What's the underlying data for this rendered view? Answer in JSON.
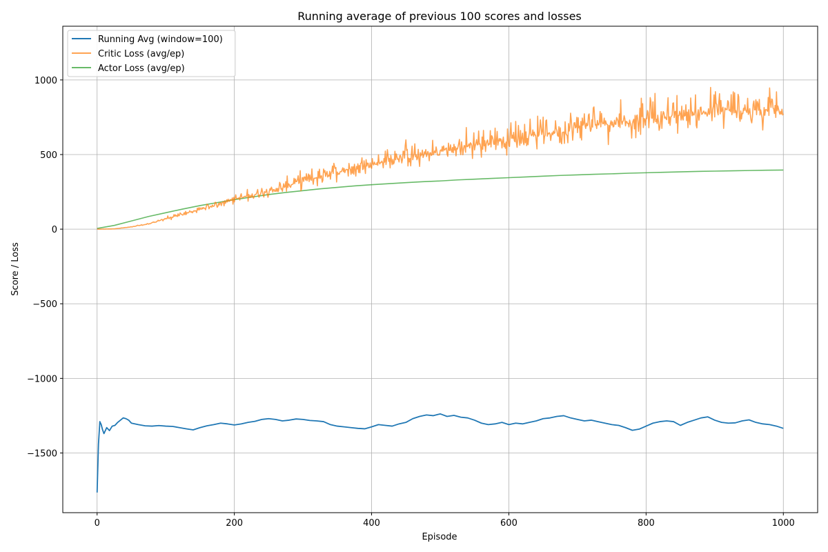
{
  "chart_data": {
    "type": "line",
    "title": "Running average of previous 100 scores and losses",
    "xlabel": "Episode",
    "ylabel": "Score / Loss",
    "xlim": [
      -50,
      1050
    ],
    "ylim": [
      -1900,
      1360
    ],
    "xticks": [
      0,
      200,
      400,
      600,
      800,
      1000
    ],
    "yticks": [
      -1500,
      -1000,
      -500,
      0,
      500,
      1000
    ],
    "ytick_labels": [
      "−1500",
      "−1000",
      "−500",
      "0",
      "500",
      "1000"
    ],
    "grid": true,
    "legend_position": "top-left",
    "series": [
      {
        "name": "Running Avg (window=100)",
        "color": "#1f77b4",
        "points": [
          [
            0,
            -1765
          ],
          [
            2,
            -1440
          ],
          [
            4,
            -1290
          ],
          [
            6,
            -1310
          ],
          [
            8,
            -1345
          ],
          [
            10,
            -1370
          ],
          [
            14,
            -1330
          ],
          [
            18,
            -1350
          ],
          [
            22,
            -1320
          ],
          [
            26,
            -1315
          ],
          [
            30,
            -1295
          ],
          [
            34,
            -1280
          ],
          [
            38,
            -1265
          ],
          [
            42,
            -1270
          ],
          [
            46,
            -1280
          ],
          [
            50,
            -1300
          ],
          [
            60,
            -1310
          ],
          [
            70,
            -1318
          ],
          [
            80,
            -1320
          ],
          [
            90,
            -1316
          ],
          [
            100,
            -1320
          ],
          [
            110,
            -1322
          ],
          [
            120,
            -1330
          ],
          [
            130,
            -1338
          ],
          [
            140,
            -1345
          ],
          [
            150,
            -1330
          ],
          [
            160,
            -1318
          ],
          [
            170,
            -1310
          ],
          [
            180,
            -1300
          ],
          [
            190,
            -1305
          ],
          [
            200,
            -1312
          ],
          [
            210,
            -1305
          ],
          [
            220,
            -1295
          ],
          [
            230,
            -1288
          ],
          [
            240,
            -1275
          ],
          [
            250,
            -1270
          ],
          [
            260,
            -1275
          ],
          [
            270,
            -1285
          ],
          [
            280,
            -1280
          ],
          [
            290,
            -1272
          ],
          [
            300,
            -1275
          ],
          [
            310,
            -1282
          ],
          [
            320,
            -1285
          ],
          [
            330,
            -1290
          ],
          [
            340,
            -1310
          ],
          [
            350,
            -1320
          ],
          [
            360,
            -1325
          ],
          [
            370,
            -1330
          ],
          [
            380,
            -1335
          ],
          [
            390,
            -1338
          ],
          [
            400,
            -1325
          ],
          [
            410,
            -1310
          ],
          [
            420,
            -1315
          ],
          [
            430,
            -1320
          ],
          [
            440,
            -1305
          ],
          [
            450,
            -1295
          ],
          [
            460,
            -1270
          ],
          [
            470,
            -1255
          ],
          [
            480,
            -1245
          ],
          [
            490,
            -1250
          ],
          [
            500,
            -1238
          ],
          [
            510,
            -1255
          ],
          [
            520,
            -1248
          ],
          [
            530,
            -1260
          ],
          [
            540,
            -1265
          ],
          [
            550,
            -1280
          ],
          [
            560,
            -1300
          ],
          [
            570,
            -1310
          ],
          [
            580,
            -1305
          ],
          [
            590,
            -1295
          ],
          [
            600,
            -1310
          ],
          [
            610,
            -1300
          ],
          [
            620,
            -1305
          ],
          [
            630,
            -1295
          ],
          [
            640,
            -1285
          ],
          [
            650,
            -1270
          ],
          [
            660,
            -1265
          ],
          [
            670,
            -1255
          ],
          [
            680,
            -1250
          ],
          [
            690,
            -1265
          ],
          [
            700,
            -1275
          ],
          [
            710,
            -1285
          ],
          [
            720,
            -1280
          ],
          [
            730,
            -1290
          ],
          [
            740,
            -1300
          ],
          [
            750,
            -1310
          ],
          [
            760,
            -1315
          ],
          [
            770,
            -1330
          ],
          [
            780,
            -1348
          ],
          [
            790,
            -1340
          ],
          [
            800,
            -1320
          ],
          [
            810,
            -1300
          ],
          [
            820,
            -1290
          ],
          [
            830,
            -1285
          ],
          [
            840,
            -1290
          ],
          [
            850,
            -1315
          ],
          [
            860,
            -1295
          ],
          [
            870,
            -1280
          ],
          [
            880,
            -1265
          ],
          [
            890,
            -1258
          ],
          [
            900,
            -1280
          ],
          [
            910,
            -1295
          ],
          [
            920,
            -1300
          ],
          [
            930,
            -1298
          ],
          [
            940,
            -1285
          ],
          [
            950,
            -1278
          ],
          [
            960,
            -1295
          ],
          [
            970,
            -1305
          ],
          [
            980,
            -1310
          ],
          [
            990,
            -1320
          ],
          [
            1000,
            -1335
          ]
        ]
      },
      {
        "name": "Critic Loss (avg/ep)",
        "color": "#ff7f0e",
        "noisy": true,
        "points": [
          [
            0,
            0
          ],
          [
            25,
            2
          ],
          [
            50,
            15
          ],
          [
            75,
            35
          ],
          [
            100,
            70
          ],
          [
            125,
            100
          ],
          [
            150,
            130
          ],
          [
            175,
            165
          ],
          [
            200,
            200
          ],
          [
            225,
            225
          ],
          [
            250,
            255
          ],
          [
            275,
            290
          ],
          [
            300,
            320
          ],
          [
            325,
            355
          ],
          [
            350,
            385
          ],
          [
            375,
            410
          ],
          [
            400,
            440
          ],
          [
            425,
            460
          ],
          [
            450,
            485
          ],
          [
            475,
            500
          ],
          [
            500,
            520
          ],
          [
            525,
            545
          ],
          [
            550,
            565
          ],
          [
            575,
            585
          ],
          [
            600,
            605
          ],
          [
            625,
            620
          ],
          [
            650,
            640
          ],
          [
            675,
            660
          ],
          [
            700,
            680
          ],
          [
            725,
            700
          ],
          [
            750,
            720
          ],
          [
            775,
            730
          ],
          [
            800,
            740
          ],
          [
            825,
            755
          ],
          [
            850,
            765
          ],
          [
            875,
            775
          ],
          [
            900,
            785
          ],
          [
            925,
            790
          ],
          [
            950,
            795
          ],
          [
            975,
            800
          ],
          [
            1000,
            800
          ]
        ]
      },
      {
        "name": "Actor Loss (avg/ep)",
        "color": "#2ca02c",
        "points": [
          [
            0,
            5
          ],
          [
            25,
            25
          ],
          [
            50,
            55
          ],
          [
            75,
            85
          ],
          [
            100,
            110
          ],
          [
            125,
            135
          ],
          [
            150,
            158
          ],
          [
            175,
            178
          ],
          [
            200,
            198
          ],
          [
            225,
            215
          ],
          [
            250,
            232
          ],
          [
            275,
            246
          ],
          [
            300,
            258
          ],
          [
            325,
            270
          ],
          [
            350,
            280
          ],
          [
            375,
            290
          ],
          [
            400,
            298
          ],
          [
            425,
            305
          ],
          [
            450,
            312
          ],
          [
            475,
            318
          ],
          [
            500,
            323
          ],
          [
            525,
            330
          ],
          [
            550,
            335
          ],
          [
            575,
            340
          ],
          [
            600,
            345
          ],
          [
            625,
            350
          ],
          [
            650,
            355
          ],
          [
            675,
            360
          ],
          [
            700,
            364
          ],
          [
            725,
            368
          ],
          [
            750,
            371
          ],
          [
            775,
            375
          ],
          [
            800,
            378
          ],
          [
            825,
            381
          ],
          [
            850,
            384
          ],
          [
            875,
            387
          ],
          [
            900,
            389
          ],
          [
            925,
            391
          ],
          [
            950,
            393
          ],
          [
            975,
            395
          ],
          [
            1000,
            396
          ]
        ]
      }
    ]
  }
}
